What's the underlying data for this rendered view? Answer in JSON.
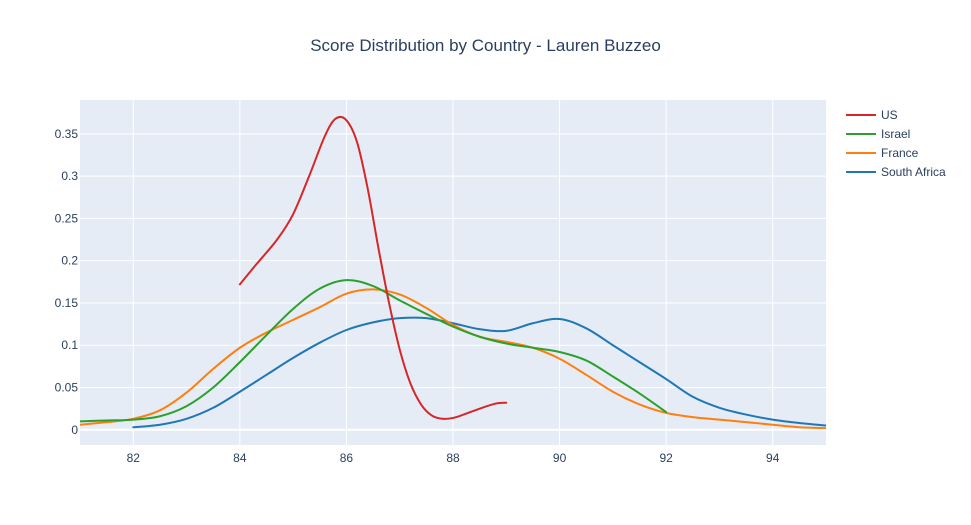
{
  "chart_data": {
    "type": "line",
    "title": "Score Distribution by Country - Lauren Buzzeo",
    "xlabel": "",
    "ylabel": "",
    "xlim": [
      81,
      95
    ],
    "ylim": [
      -0.018,
      0.39
    ],
    "xticks": [
      82,
      84,
      86,
      88,
      90,
      92,
      94
    ],
    "yticks": [
      0,
      0.05,
      0.1,
      0.15,
      0.2,
      0.25,
      0.3,
      0.35
    ],
    "ytick_labels": [
      "0",
      "0.05",
      "0.1",
      "0.15",
      "0.2",
      "0.25",
      "0.3",
      "0.35"
    ],
    "grid": true,
    "legend_position": "top-right",
    "series": [
      {
        "name": "US",
        "color": "#d62728",
        "x": [
          84,
          84.3,
          84.7,
          85,
          85.3,
          85.6,
          85.8,
          86,
          86.2,
          86.4,
          86.6,
          86.8,
          87,
          87.2,
          87.4,
          87.6,
          87.8,
          88,
          88.2,
          88.5,
          88.8,
          89
        ],
        "y": [
          0.172,
          0.195,
          0.225,
          0.255,
          0.3,
          0.348,
          0.368,
          0.366,
          0.34,
          0.285,
          0.215,
          0.15,
          0.095,
          0.055,
          0.03,
          0.017,
          0.013,
          0.014,
          0.018,
          0.025,
          0.031,
          0.032
        ]
      },
      {
        "name": "Israel",
        "color": "#2ca02c",
        "x": [
          81,
          81.5,
          82,
          82.5,
          83,
          83.5,
          84,
          84.5,
          85,
          85.5,
          86,
          86.5,
          87,
          87.5,
          88,
          88.5,
          89,
          89.5,
          90,
          90.5,
          91,
          91.5,
          92
        ],
        "y": [
          0.01,
          0.011,
          0.012,
          0.016,
          0.028,
          0.05,
          0.08,
          0.112,
          0.143,
          0.167,
          0.177,
          0.17,
          0.153,
          0.137,
          0.122,
          0.11,
          0.102,
          0.097,
          0.092,
          0.082,
          0.063,
          0.043,
          0.021
        ]
      },
      {
        "name": "France",
        "color": "#ff7f0e",
        "x": [
          81,
          81.5,
          82,
          82.5,
          83,
          83.5,
          84,
          84.5,
          85,
          85.5,
          86,
          86.5,
          87,
          87.5,
          88,
          88.5,
          89,
          89.5,
          90,
          90.5,
          91,
          91.5,
          92,
          92.5,
          93,
          93.5,
          94,
          94.5,
          95
        ],
        "y": [
          0.006,
          0.009,
          0.013,
          0.023,
          0.044,
          0.072,
          0.097,
          0.115,
          0.13,
          0.145,
          0.161,
          0.166,
          0.16,
          0.144,
          0.124,
          0.11,
          0.104,
          0.097,
          0.084,
          0.065,
          0.045,
          0.03,
          0.02,
          0.015,
          0.012,
          0.009,
          0.006,
          0.003,
          0.002
        ]
      },
      {
        "name": "South Africa",
        "color": "#1f77b4",
        "x": [
          82,
          82.5,
          83,
          83.5,
          84,
          84.5,
          85,
          85.5,
          86,
          86.5,
          87,
          87.5,
          88,
          88.5,
          89,
          89.5,
          90,
          90.5,
          91,
          91.5,
          92,
          92.5,
          93,
          93.5,
          94,
          94.5,
          95
        ],
        "y": [
          0.003,
          0.006,
          0.013,
          0.026,
          0.045,
          0.065,
          0.085,
          0.103,
          0.118,
          0.127,
          0.132,
          0.132,
          0.126,
          0.119,
          0.117,
          0.126,
          0.131,
          0.12,
          0.1,
          0.08,
          0.06,
          0.039,
          0.026,
          0.018,
          0.012,
          0.008,
          0.005
        ]
      }
    ]
  }
}
